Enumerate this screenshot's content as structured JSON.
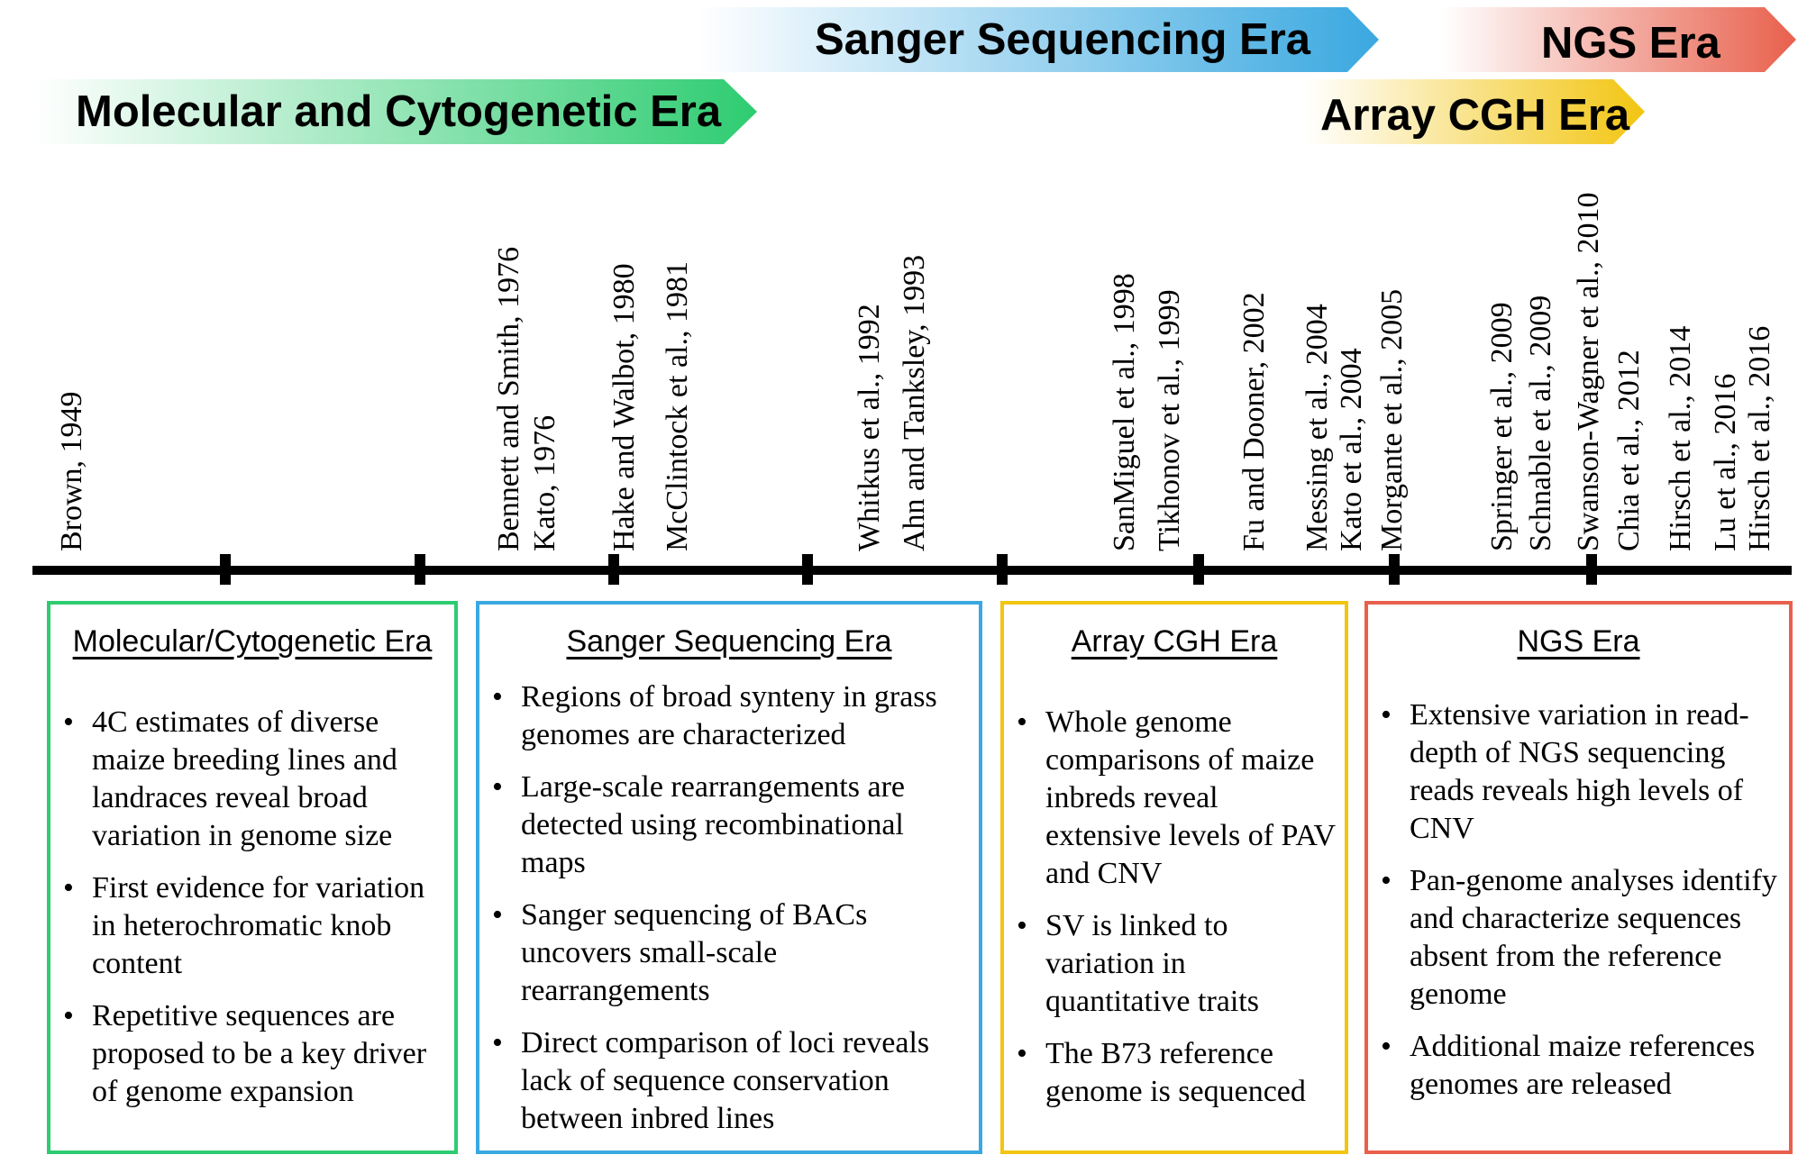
{
  "eras": [
    {
      "key": "molecular",
      "label": "Molecular and Cytogenetic Era",
      "color": "#2ecc71"
    },
    {
      "key": "sanger",
      "label": "Sanger Sequencing Era",
      "color": "#3aa8e0"
    },
    {
      "key": "array",
      "label": "Array CGH Era",
      "color": "#f2c511"
    },
    {
      "key": "ngs",
      "label": "NGS Era",
      "color": "#e8604c"
    }
  ],
  "citations": [
    "Brown, 1949",
    "Bennett and Smith, 1976",
    "Kato, 1976",
    "Hake and Walbot, 1980",
    "McClintock et al., 1981",
    "Whitkus et al., 1992",
    "Ahn and Tanksley, 1993",
    "SanMiguel et al., 1998",
    "Tikhonov et al., 1999",
    "Fu and Dooner, 2002",
    "Messing et al., 2004",
    "Kato et al., 2004",
    "Morgante et al., 2005",
    "Springer et al., 2009",
    "Schnable et al., 2009",
    "Swanson-Wagner et al., 2010",
    "Chia et al., 2012",
    "Hirsch et al., 2014",
    "Lu et al., 2016",
    "Hirsch et al., 2016"
  ],
  "boxes": {
    "molecular": {
      "title": "Molecular/Cytogenetic Era",
      "color": "#2ecc71",
      "bullets": [
        "4C estimates of diverse maize breeding lines and landraces reveal broad variation in genome size",
        "First evidence for variation in heterochromatic knob content",
        "Repetitive sequences are proposed to be a key driver of genome expansion"
      ]
    },
    "sanger": {
      "title": "Sanger Sequencing Era",
      "color": "#3aa8e0",
      "bullets": [
        "Regions of broad synteny in grass genomes are characterized",
        "Large-scale rearrangements are detected using recombinational maps",
        "Sanger sequencing of BACs uncovers small-scale rearrangements",
        "Direct comparison of loci reveals lack of sequence conservation between inbred lines"
      ]
    },
    "array": {
      "title": "Array CGH Era",
      "color": "#f2c511",
      "bullets": [
        "Whole genome comparisons of maize inbreds reveal extensive levels of PAV and CNV",
        "SV is linked to variation in quantitative traits",
        "The B73 reference genome is sequenced"
      ]
    },
    "ngs": {
      "title": "NGS Era",
      "color": "#e8604c",
      "bullets": [
        "Extensive variation in read-depth of NGS sequencing reads reveals high levels of CNV",
        "Pan-genome analyses identify and characterize sequences absent from the reference genome",
        "Additional maize references genomes are released"
      ]
    }
  }
}
